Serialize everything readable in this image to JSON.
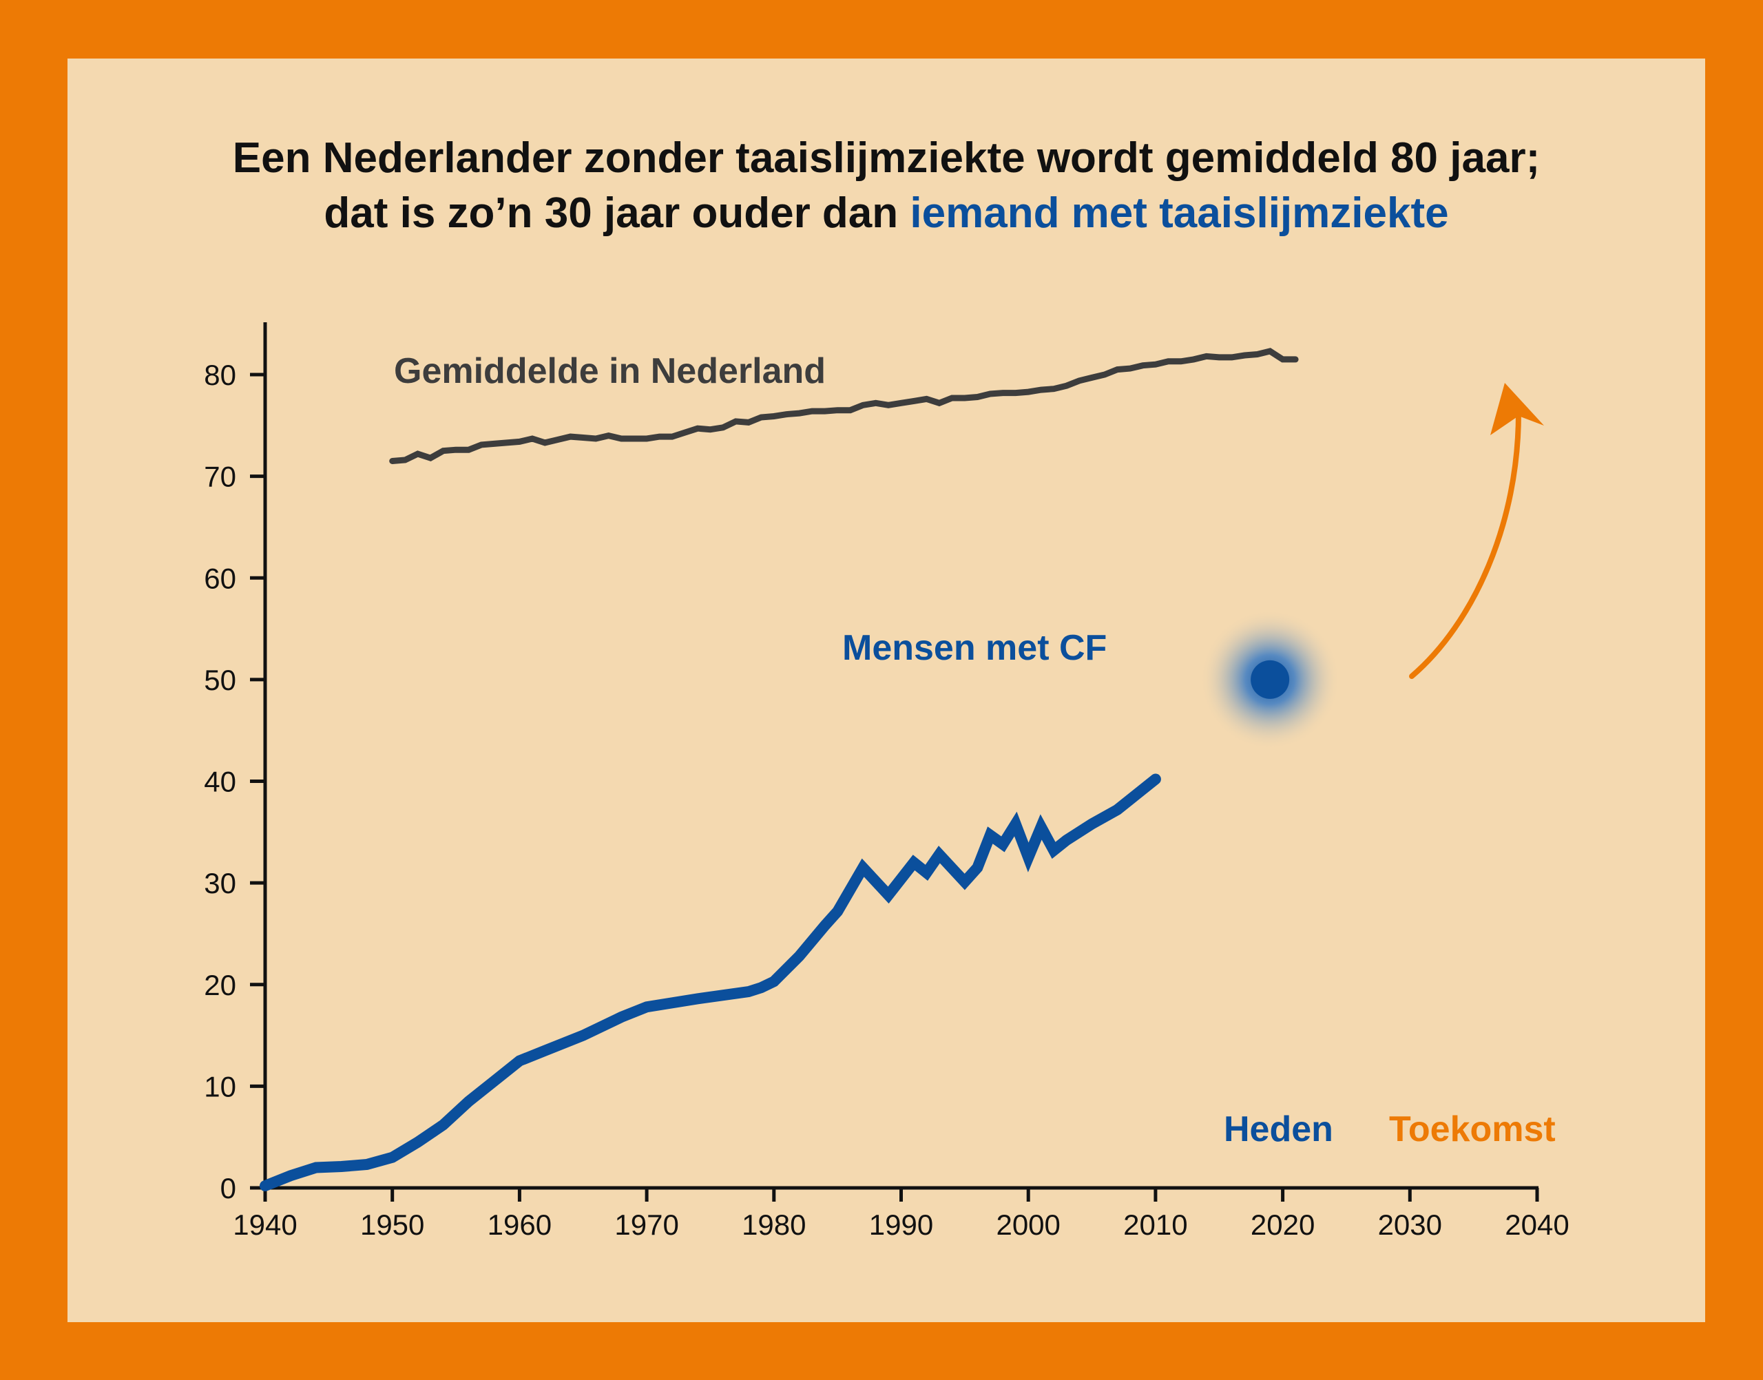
{
  "title": {
    "line1": "Een Nederlander zonder taaislijmziekte wordt gemiddeld 80 jaar;",
    "line2_prefix": "dat is zo’n 30 jaar ouder dan ",
    "line2_highlight": "iemand met taaislijmziekte"
  },
  "colors": {
    "background_frame": "#ED7A05",
    "panel": "#F4D9B0",
    "nl_line": "#3D3D3D",
    "cf_line": "#0B4F9C",
    "future": "#ED7A05"
  },
  "chart_data": {
    "type": "line",
    "xlim": [
      1940,
      2040
    ],
    "ylim": [
      0,
      85
    ],
    "x_ticks": [
      1940,
      1950,
      1960,
      1970,
      1980,
      1990,
      2000,
      2010,
      2020,
      2030,
      2040
    ],
    "y_ticks": [
      0,
      10,
      20,
      30,
      40,
      50,
      60,
      70,
      80
    ],
    "grid": false,
    "series": [
      {
        "name": "Gemiddelde in Nederland",
        "color": "#3D3D3D",
        "x": [
          1950,
          1951,
          1952,
          1953,
          1954,
          1955,
          1956,
          1957,
          1958,
          1959,
          1960,
          1961,
          1962,
          1963,
          1964,
          1965,
          1966,
          1967,
          1968,
          1969,
          1970,
          1971,
          1972,
          1973,
          1974,
          1975,
          1976,
          1977,
          1978,
          1979,
          1980,
          1981,
          1982,
          1983,
          1984,
          1985,
          1986,
          1987,
          1988,
          1989,
          1990,
          1991,
          1992,
          1993,
          1994,
          1995,
          1996,
          1997,
          1998,
          1999,
          2000,
          2001,
          2002,
          2003,
          2004,
          2005,
          2006,
          2007,
          2008,
          2009,
          2010,
          2011,
          2012,
          2013,
          2014,
          2015,
          2016,
          2017,
          2018,
          2019,
          2020,
          2021
        ],
        "y": [
          71.5,
          71.6,
          72.2,
          71.8,
          72.5,
          72.6,
          72.6,
          73.1,
          73.2,
          73.3,
          73.4,
          73.7,
          73.3,
          73.6,
          73.9,
          73.8,
          73.7,
          74.0,
          73.7,
          73.7,
          73.7,
          73.9,
          73.9,
          74.3,
          74.7,
          74.6,
          74.8,
          75.4,
          75.3,
          75.8,
          75.9,
          76.1,
          76.2,
          76.4,
          76.4,
          76.5,
          76.5,
          77.0,
          77.2,
          77.0,
          77.2,
          77.4,
          77.6,
          77.2,
          77.7,
          77.7,
          77.8,
          78.1,
          78.2,
          78.2,
          78.3,
          78.5,
          78.6,
          78.9,
          79.4,
          79.7,
          80.0,
          80.5,
          80.6,
          80.9,
          81.0,
          81.3,
          81.3,
          81.5,
          81.8,
          81.7,
          81.7,
          81.9,
          82.0,
          82.3,
          81.5,
          81.5
        ]
      },
      {
        "name": "Mensen met CF",
        "color": "#0B4F9C",
        "x": [
          1940,
          1942,
          1944,
          1946,
          1948,
          1950,
          1952,
          1954,
          1956,
          1958,
          1960,
          1962,
          1965,
          1968,
          1970,
          1974,
          1978,
          1979,
          1980,
          1982,
          1984,
          1985,
          1987,
          1989,
          1991,
          1992,
          1993,
          1995,
          1996,
          1997,
          1998,
          1999,
          2000,
          2001,
          2002,
          2003,
          2005,
          2007,
          2010
        ],
        "y": [
          0.2,
          1.2,
          2.0,
          2.1,
          2.3,
          3.0,
          4.5,
          6.2,
          8.5,
          10.5,
          12.5,
          13.5,
          15.0,
          16.8,
          17.8,
          18.6,
          19.3,
          19.7,
          20.3,
          22.8,
          25.8,
          27.2,
          31.5,
          28.8,
          32.0,
          31.0,
          32.8,
          30.1,
          31.5,
          34.7,
          33.8,
          35.8,
          32.5,
          35.5,
          33.2,
          34.2,
          35.8,
          37.2,
          40.2
        ]
      }
    ],
    "future_point": {
      "x": 2019,
      "y": 50
    },
    "annotations": [
      "Heden",
      "Toekomst"
    ]
  }
}
